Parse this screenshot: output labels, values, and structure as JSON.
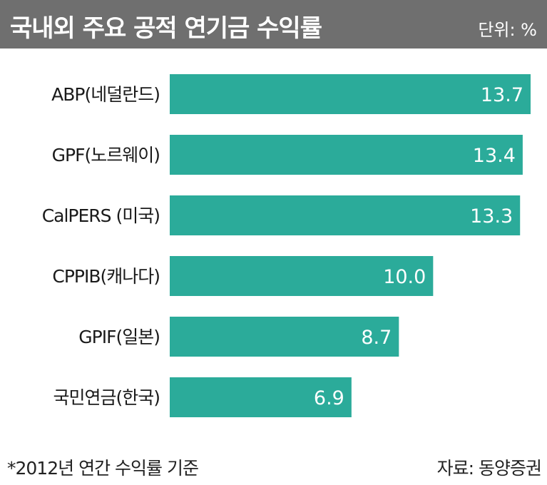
{
  "header": {
    "title": "국내외 주요 공적 연기금 수익률",
    "unit": "단위: %"
  },
  "chart_data": {
    "type": "bar",
    "orientation": "horizontal",
    "categories": [
      "ABP(네덜란드)",
      "GPF(노르웨이)",
      "CalPERS (미국)",
      "CPPIB(캐나다)",
      "GPIF(일본)",
      "국민연금(한국)"
    ],
    "values": [
      13.7,
      13.4,
      13.3,
      10.0,
      8.7,
      6.9
    ],
    "value_labels": [
      "13.7",
      "13.4",
      "13.3",
      "10.0",
      "8.7",
      "6.9"
    ],
    "title": "국내외 주요 공적 연기금 수익률",
    "xlabel": "",
    "ylabel": "",
    "bar_color": "#2bab9a",
    "grid": false,
    "legend": "none"
  },
  "footer": {
    "note": "*2012년 연간 수익률 기준",
    "source": "자료: 동양증권"
  }
}
